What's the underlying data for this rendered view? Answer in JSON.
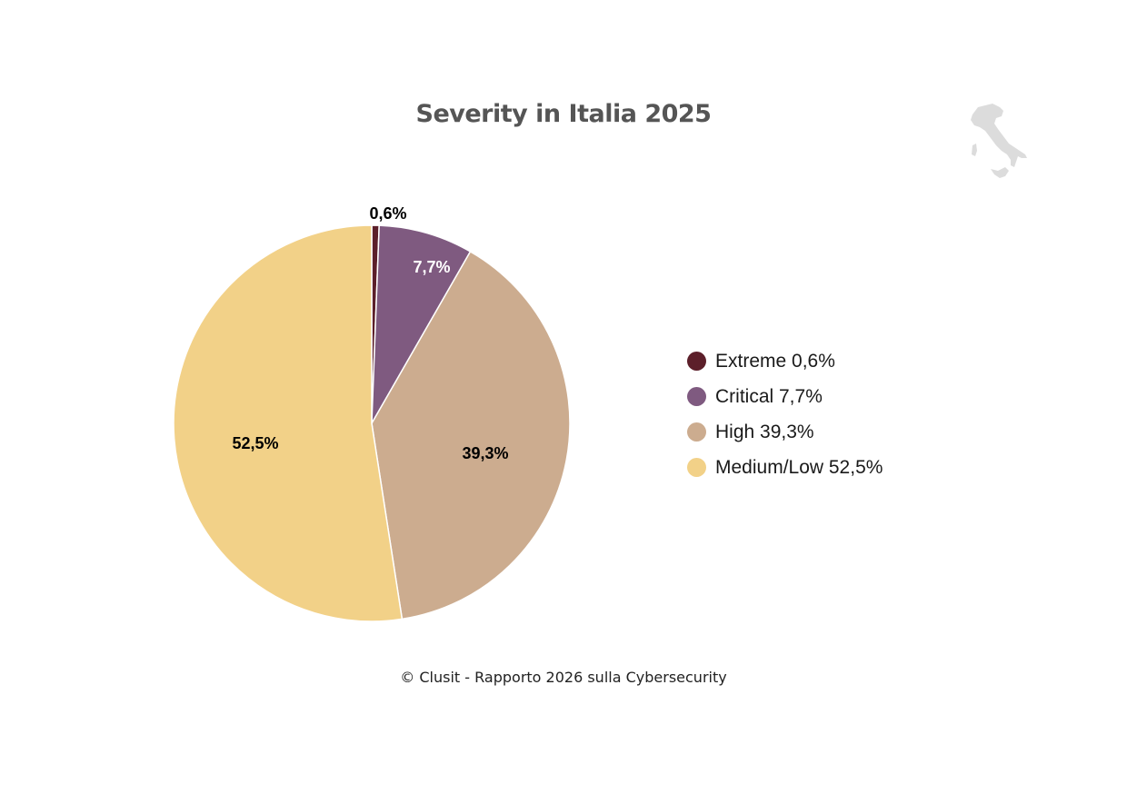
{
  "title": "Severity in Italia 2025",
  "footer": "© Clusit - Rapporto 2026 sulla Cybersecurity",
  "decor": {
    "icon": "italy-map-icon",
    "color": "#dcdcdc"
  },
  "legend": {
    "items": [
      {
        "label": "Extreme 0,6%",
        "color": "#5c1f2a"
      },
      {
        "label": "Critical 7,7%",
        "color": "#7f5a80"
      },
      {
        "label": "High 39,3%",
        "color": "#ccac8f"
      },
      {
        "label": "Medium/Low 52,5%",
        "color": "#f2d188"
      }
    ]
  },
  "slice_labels": [
    "0,6%",
    "7,7%",
    "39,3%",
    "52,5%"
  ],
  "chart_data": {
    "type": "pie",
    "title": "Severity in Italia 2025",
    "categories": [
      "Extreme",
      "Critical",
      "High",
      "Medium/Low"
    ],
    "values": [
      0.6,
      7.7,
      39.3,
      52.5
    ],
    "unit": "%",
    "colors": [
      "#5c1f2a",
      "#7f5a80",
      "#ccac8f",
      "#f2d188"
    ],
    "start_angle": "12 o'clock, clockwise",
    "data_labels": [
      "0,6%",
      "7,7%",
      "39,3%",
      "52,5%"
    ],
    "legend_position": "right",
    "source": "© Clusit - Rapporto 2026 sulla Cybersecurity"
  }
}
